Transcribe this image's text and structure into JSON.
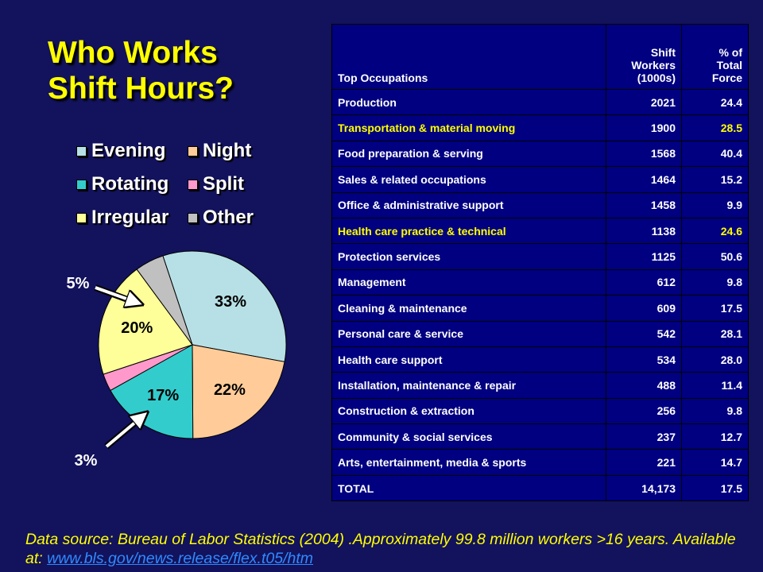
{
  "title": {
    "line1": "Who Works",
    "line2": "Shift Hours?"
  },
  "chart_data": {
    "type": "pie",
    "title": "",
    "slices": [
      {
        "name": "Evening",
        "value": 33,
        "label": "33%",
        "color": "#b7e0e6"
      },
      {
        "name": "Night",
        "value": 22,
        "label": "22%",
        "color": "#ffcc99"
      },
      {
        "name": "Rotating",
        "value": 17,
        "label": "17%",
        "color": "#33cccc"
      },
      {
        "name": "Split",
        "value": 3,
        "label": "3%",
        "color": "#ff99cc"
      },
      {
        "name": "Irregular",
        "value": 20,
        "label": "20%",
        "color": "#ffff99"
      },
      {
        "name": "Other",
        "value": 5,
        "label": "5%",
        "color": "#c0c0c0"
      }
    ],
    "legend": [
      "Evening",
      "Night",
      "Rotating",
      "Split",
      "Irregular",
      "Other"
    ],
    "legend_placement": "top"
  },
  "table": {
    "headers": {
      "occupation": "Top Occupations",
      "workers": [
        "Shift",
        "Workers",
        "(1000s)"
      ],
      "percent": [
        "% of",
        "Total",
        "Force"
      ]
    },
    "rows": [
      {
        "name": "Production",
        "workers": "2021",
        "percent": "24.4",
        "highlight": false
      },
      {
        "name": "Transportation & material moving",
        "workers": "1900",
        "percent": "28.5",
        "highlight": true
      },
      {
        "name": "Food preparation & serving",
        "workers": "1568",
        "percent": "40.4",
        "highlight": false
      },
      {
        "name": "Sales & related occupations",
        "workers": "1464",
        "percent": "15.2",
        "highlight": false
      },
      {
        "name": "Office & administrative support",
        "workers": "1458",
        "percent": "9.9",
        "highlight": false
      },
      {
        "name": "Health care practice & technical",
        "workers": "1138",
        "percent": "24.6",
        "highlight": true
      },
      {
        "name": "Protection services",
        "workers": "1125",
        "percent": "50.6",
        "highlight": false
      },
      {
        "name": "Management",
        "workers": "612",
        "percent": "9.8",
        "highlight": false
      },
      {
        "name": "Cleaning & maintenance",
        "workers": "609",
        "percent": "17.5",
        "highlight": false
      },
      {
        "name": "Personal care & service",
        "workers": "542",
        "percent": "28.1",
        "highlight": false
      },
      {
        "name": "Health care support",
        "workers": "534",
        "percent": "28.0",
        "highlight": false
      },
      {
        "name": "Installation, maintenance & repair",
        "workers": "488",
        "percent": "11.4",
        "highlight": false
      },
      {
        "name": "Construction & extraction",
        "workers": "256",
        "percent": "9.8",
        "highlight": false
      },
      {
        "name": "Community & social services",
        "workers": "237",
        "percent": "12.7",
        "highlight": false
      },
      {
        "name": "Arts, entertainment, media & sports",
        "workers": "221",
        "percent": "14.7",
        "highlight": false
      }
    ],
    "total": {
      "name": "TOTAL",
      "workers": "14,173",
      "percent": "17.5"
    }
  },
  "footer": {
    "text": "Data source: Bureau of Labor Statistics (2004) .Approximately 99.8 million workers >16 years.  Available at: ",
    "link": "www.bls.gov/news.release/flex.t05/htm"
  },
  "colors": {
    "background": "#13125c",
    "title": "#ffff00",
    "table_bg": "#000080",
    "highlight_text": "#ffff00",
    "link": "#2e8bff"
  }
}
